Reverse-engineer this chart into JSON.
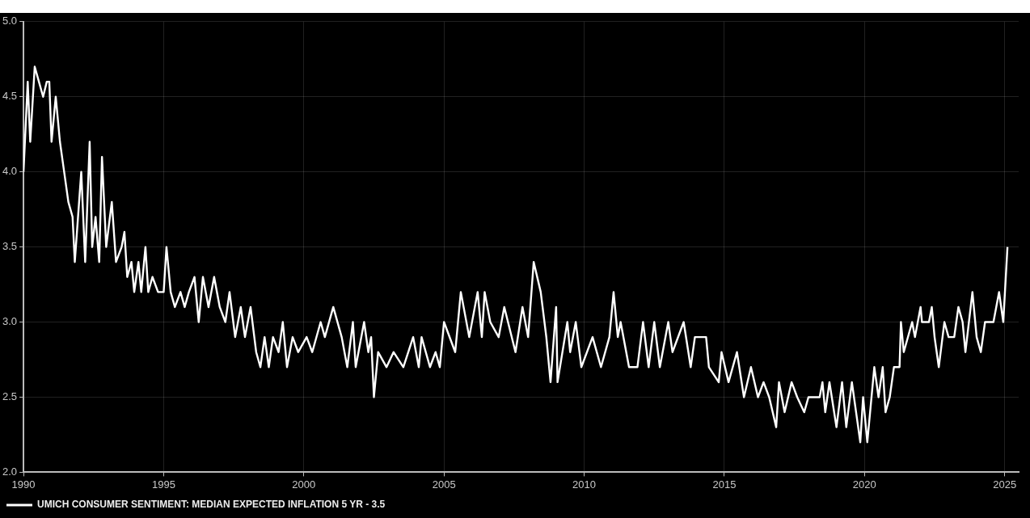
{
  "chart_data": {
    "type": "line",
    "x": [
      1990.0,
      1990.15,
      1990.24,
      1990.4,
      1990.55,
      1990.7,
      1990.83,
      1990.92,
      1991.0,
      1991.15,
      1991.3,
      1991.45,
      1991.6,
      1991.75,
      1991.83,
      1992.06,
      1992.2,
      1992.36,
      1992.45,
      1992.57,
      1992.7,
      1992.8,
      1992.95,
      1993.15,
      1993.3,
      1993.5,
      1993.6,
      1993.7,
      1993.85,
      1993.95,
      1994.1,
      1994.2,
      1994.35,
      1994.45,
      1994.6,
      1994.8,
      1995.0,
      1995.1,
      1995.25,
      1995.4,
      1995.6,
      1995.75,
      1995.9,
      1996.1,
      1996.25,
      1996.4,
      1996.6,
      1996.8,
      1997.0,
      1997.2,
      1997.35,
      1997.55,
      1997.75,
      1997.9,
      1998.1,
      1998.3,
      1998.45,
      1998.6,
      1998.75,
      1998.9,
      1999.1,
      1999.25,
      1999.4,
      1999.6,
      1999.8,
      2000.1,
      2000.3,
      2000.6,
      2000.75,
      2001.05,
      2001.35,
      2001.55,
      2001.75,
      2001.85,
      2002.15,
      2002.3,
      2002.4,
      2002.5,
      2002.65,
      2002.95,
      2003.2,
      2003.55,
      2003.9,
      2004.1,
      2004.2,
      2004.5,
      2004.7,
      2004.85,
      2005.0,
      2005.4,
      2005.6,
      2005.9,
      2006.2,
      2006.35,
      2006.45,
      2006.65,
      2006.95,
      2007.15,
      2007.55,
      2007.8,
      2008.0,
      2008.2,
      2008.45,
      2008.65,
      2008.8,
      2009.0,
      2009.05,
      2009.4,
      2009.5,
      2009.7,
      2009.9,
      2010.3,
      2010.6,
      2010.9,
      2011.05,
      2011.2,
      2011.3,
      2011.6,
      2011.9,
      2012.1,
      2012.3,
      2012.5,
      2012.7,
      2013.0,
      2013.15,
      2013.55,
      2013.8,
      2013.95,
      2014.35,
      2014.45,
      2014.8,
      2014.9,
      2015.15,
      2015.45,
      2015.7,
      2015.95,
      2016.2,
      2016.4,
      2016.6,
      2016.85,
      2016.95,
      2017.15,
      2017.4,
      2017.6,
      2017.85,
      2018.0,
      2018.4,
      2018.5,
      2018.6,
      2018.75,
      2019.0,
      2019.2,
      2019.35,
      2019.55,
      2019.7,
      2019.85,
      2019.95,
      2020.1,
      2020.35,
      2020.5,
      2020.65,
      2020.75,
      2020.9,
      2021.05,
      2021.25,
      2021.3,
      2021.4,
      2021.7,
      2021.8,
      2022.0,
      2022.05,
      2022.3,
      2022.4,
      2022.5,
      2022.65,
      2022.85,
      2023.0,
      2023.2,
      2023.35,
      2023.5,
      2023.6,
      2023.85,
      2024.0,
      2024.15,
      2024.3,
      2024.6,
      2024.7,
      2024.8,
      2024.95,
      2025.1
    ],
    "series": [
      {
        "name": "UMICH CONSUMER SENTIMENT: MEDIAN EXPECTED INFLATION 5 YR - 3.5",
        "color": "#ffffff",
        "values": [
          4.0,
          4.6,
          4.2,
          4.7,
          4.6,
          4.5,
          4.6,
          4.6,
          4.2,
          4.5,
          4.2,
          4.0,
          3.8,
          3.7,
          3.4,
          4.0,
          3.4,
          4.2,
          3.5,
          3.7,
          3.4,
          4.1,
          3.5,
          3.8,
          3.4,
          3.5,
          3.6,
          3.3,
          3.4,
          3.2,
          3.4,
          3.2,
          3.5,
          3.2,
          3.3,
          3.2,
          3.2,
          3.5,
          3.2,
          3.1,
          3.2,
          3.1,
          3.2,
          3.3,
          3.0,
          3.3,
          3.1,
          3.3,
          3.1,
          3.0,
          3.2,
          2.9,
          3.1,
          2.9,
          3.1,
          2.8,
          2.7,
          2.9,
          2.7,
          2.9,
          2.8,
          3.0,
          2.7,
          2.9,
          2.8,
          2.9,
          2.8,
          3.0,
          2.9,
          3.1,
          2.9,
          2.7,
          3.0,
          2.7,
          3.0,
          2.8,
          2.9,
          2.5,
          2.8,
          2.7,
          2.8,
          2.7,
          2.9,
          2.7,
          2.9,
          2.7,
          2.8,
          2.7,
          3.0,
          2.8,
          3.2,
          2.9,
          3.2,
          2.9,
          3.2,
          3.0,
          2.9,
          3.1,
          2.8,
          3.1,
          2.9,
          3.4,
          3.2,
          2.9,
          2.6,
          3.1,
          2.6,
          3.0,
          2.8,
          3.0,
          2.7,
          2.9,
          2.7,
          2.9,
          3.2,
          2.9,
          3.0,
          2.7,
          2.7,
          3.0,
          2.7,
          3.0,
          2.7,
          3.0,
          2.8,
          3.0,
          2.7,
          2.9,
          2.9,
          2.7,
          2.6,
          2.8,
          2.6,
          2.8,
          2.5,
          2.7,
          2.5,
          2.6,
          2.5,
          2.3,
          2.6,
          2.4,
          2.6,
          2.5,
          2.4,
          2.5,
          2.5,
          2.6,
          2.4,
          2.6,
          2.3,
          2.6,
          2.3,
          2.6,
          2.4,
          2.2,
          2.5,
          2.2,
          2.7,
          2.5,
          2.7,
          2.4,
          2.5,
          2.7,
          2.7,
          3.0,
          2.8,
          3.0,
          2.9,
          3.1,
          3.0,
          3.0,
          3.1,
          2.9,
          2.7,
          3.0,
          2.9,
          2.9,
          3.1,
          3.0,
          2.8,
          3.2,
          2.9,
          2.8,
          3.0,
          3.0,
          3.1,
          3.2,
          3.0,
          3.5
        ]
      }
    ],
    "xlim": [
      1990,
      2025.5
    ],
    "xticks": [
      1990,
      1995,
      2000,
      2005,
      2010,
      2015,
      2020,
      2025
    ],
    "ylim": [
      2,
      5
    ],
    "yticks": [
      {
        "value": 2,
        "label": "2.0"
      },
      {
        "value": 2.5,
        "label": "2.5"
      },
      {
        "value": 3,
        "label": "3.0"
      },
      {
        "value": 3.5,
        "label": "3.5"
      },
      {
        "value": 4,
        "label": "4.0"
      },
      {
        "value": 4.5,
        "label": "4.5"
      },
      {
        "value": 5,
        "label": "5.0"
      }
    ],
    "grid": true,
    "legend": "bottom left",
    "marker": "none",
    "line_style": "solid"
  }
}
